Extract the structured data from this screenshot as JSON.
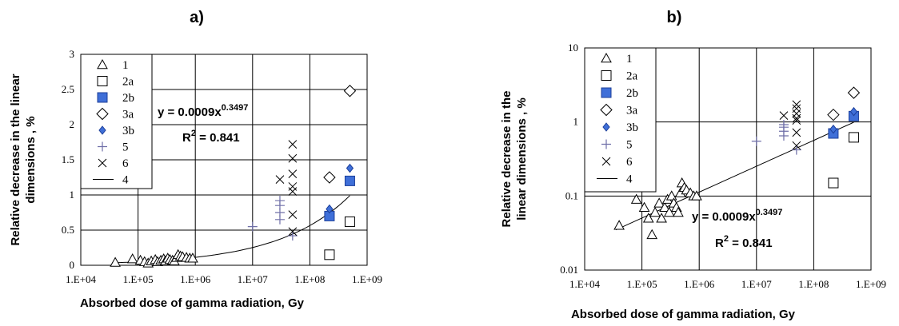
{
  "chart_data": [
    {
      "panel": "a)",
      "type": "scatter",
      "yscale": "linear",
      "xscale": "log",
      "xlabel": "Absorbed dose of gamma radiation, Gy",
      "ylabel_line1": "Relative decrease in the linear",
      "ylabel_line2": "dimensions , %",
      "xlim": [
        10000,
        1000000000
      ],
      "ylim": [
        0,
        3
      ],
      "xticks": [
        "1.E+04",
        "1.E+05",
        "1.E+06",
        "1.E+07",
        "1.E+08",
        "1.E+09"
      ],
      "yticks": [
        "0",
        "0.5",
        "1",
        "1.5",
        "2",
        "2.5",
        "3"
      ],
      "equation": "y = 0.0009x",
      "exponent": "0.3497",
      "r2_label": "R",
      "r2_exp": "2",
      "r2_value": " = 0.841",
      "fit": {
        "a": 0.0009,
        "b": 0.3497
      }
    },
    {
      "panel": "b)",
      "type": "scatter",
      "yscale": "log",
      "xscale": "log",
      "xlabel": "Absorbed dose of gamma radiation, Gy",
      "ylabel_line1": "Relative decrease in the",
      "ylabel_line2": "linear dimensions , %",
      "xlim": [
        10000,
        1000000000
      ],
      "ylim": [
        0.01,
        10
      ],
      "xticks": [
        "1.E+04",
        "1.E+05",
        "1.E+06",
        "1.E+07",
        "1.E+08",
        "1.E+09"
      ],
      "yticks": [
        "0.01",
        "0.1",
        "1",
        "10"
      ],
      "equation": "y = 0.0009x",
      "exponent": "0.3497",
      "r2_label": "R",
      "r2_exp": "2",
      "r2_value": " = 0.841",
      "fit": {
        "a": 0.0009,
        "b": 0.3497
      }
    }
  ],
  "legend": [
    {
      "label": "1",
      "marker": "triangle"
    },
    {
      "label": "2a",
      "marker": "square-open"
    },
    {
      "label": "2b",
      "marker": "square-filled"
    },
    {
      "label": "3a",
      "marker": "diamond-open"
    },
    {
      "label": "3b",
      "marker": "diamond-filled"
    },
    {
      "label": "5",
      "marker": "plus"
    },
    {
      "label": "6",
      "marker": "cross"
    },
    {
      "label": "4",
      "marker": "line"
    }
  ],
  "colors": {
    "filled_marker": "#3f6fd8",
    "plus_marker": "#6f6fa8",
    "grid": "#000000"
  },
  "series": {
    "1": [
      [
        40000,
        0.04
      ],
      [
        80000,
        0.09
      ],
      [
        110000,
        0.07
      ],
      [
        130000,
        0.05
      ],
      [
        150000,
        0.03
      ],
      [
        170000,
        0.06
      ],
      [
        200000,
        0.08
      ],
      [
        220000,
        0.05
      ],
      [
        250000,
        0.07
      ],
      [
        280000,
        0.09
      ],
      [
        300000,
        0.06
      ],
      [
        330000,
        0.1
      ],
      [
        360000,
        0.08
      ],
      [
        400000,
        0.07
      ],
      [
        430000,
        0.06
      ],
      [
        470000,
        0.11
      ],
      [
        500000,
        0.15
      ],
      [
        550000,
        0.13
      ],
      [
        600000,
        0.12
      ],
      [
        700000,
        0.11
      ],
      [
        800000,
        0.1
      ],
      [
        900000,
        0.1
      ]
    ],
    "2a": [
      [
        220000000,
        0.15
      ],
      [
        500000000,
        0.62
      ]
    ],
    "2b": [
      [
        220000000,
        0.7
      ],
      [
        500000000,
        1.2
      ]
    ],
    "3a": [
      [
        220000000,
        1.25
      ],
      [
        500000000,
        2.48
      ]
    ],
    "3b": [
      [
        220000000,
        0.8
      ],
      [
        500000000,
        1.38
      ]
    ],
    "5": [
      [
        10000000,
        0.55
      ],
      [
        30000000,
        0.65
      ],
      [
        30000000,
        0.75
      ],
      [
        30000000,
        0.85
      ],
      [
        30000000,
        0.92
      ],
      [
        50000000,
        0.42
      ]
    ],
    "6": [
      [
        30000000,
        1.22
      ],
      [
        50000000,
        0.48
      ],
      [
        50000000,
        0.72
      ],
      [
        50000000,
        1.05
      ],
      [
        50000000,
        1.12
      ],
      [
        50000000,
        1.3
      ],
      [
        50000000,
        1.52
      ],
      [
        50000000,
        1.72
      ]
    ]
  }
}
